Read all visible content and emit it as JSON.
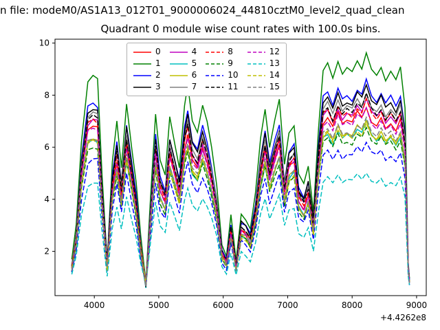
{
  "figure": {
    "title_line1": "n file: modeM0/AS1A13_012T01_9000006024_44810cztM0_level2_quad_clean",
    "title_line2": "Quadrant 0 module wise count rates with 100.0s bins.",
    "background": "#ffffff"
  },
  "chart_data": {
    "type": "line",
    "title": "Quadrant 0 module wise count rates with 100.0s bins.",
    "xlabel": "",
    "ylabel": "",
    "grid": false,
    "legend_position": "upper center",
    "legend_ncol": 4,
    "x_offset": "+4.4262e8",
    "xlim": [
      3390,
      9150
    ],
    "ylim": [
      0.3,
      10.15
    ],
    "x_ticks": [
      4000,
      5000,
      6000,
      7000,
      8000,
      9000
    ],
    "y_ticks": [
      2,
      4,
      6,
      8,
      10
    ],
    "x": [
      3650,
      3720,
      3800,
      3900,
      3980,
      4050,
      4120,
      4200,
      4280,
      4350,
      4420,
      4500,
      4580,
      4650,
      4720,
      4800,
      4870,
      4950,
      5020,
      5100,
      5170,
      5250,
      5320,
      5400,
      5450,
      5520,
      5600,
      5680,
      5750,
      5820,
      5900,
      5980,
      6050,
      6120,
      6200,
      6280,
      6350,
      6420,
      6500,
      6580,
      6650,
      6720,
      6800,
      6870,
      6950,
      7020,
      7100,
      7170,
      7250,
      7320,
      7400,
      7480,
      7550,
      7620,
      7700,
      7780,
      7850,
      7920,
      8000,
      8080,
      8150,
      8220,
      8300,
      8380,
      8450,
      8520,
      8600,
      8680,
      8750,
      8820,
      8870,
      8890
    ],
    "base_curve": [
      1.6,
      3.0,
      6.2,
      8.5,
      8.7,
      8.6,
      5.0,
      1.7,
      5.5,
      7.0,
      5.2,
      7.7,
      6.0,
      4.6,
      2.5,
      0.75,
      4.0,
      7.3,
      5.5,
      4.9,
      7.2,
      6.2,
      5.3,
      7.6,
      8.35,
      7.0,
      6.6,
      7.6,
      6.9,
      5.9,
      4.5,
      2.3,
      1.85,
      3.4,
      1.65,
      3.5,
      3.3,
      2.9,
      4.2,
      6.3,
      7.45,
      6.0,
      7.0,
      7.75,
      5.3,
      6.6,
      6.9,
      5.0,
      4.6,
      5.3,
      3.6,
      6.8,
      8.9,
      9.15,
      8.6,
      9.3,
      8.8,
      9.0,
      8.85,
      9.35,
      9.1,
      9.7,
      9.0,
      8.75,
      9.1,
      8.6,
      8.9,
      8.5,
      9.0,
      7.5,
      1.6,
      0.95
    ],
    "pivot": 0.5,
    "series": [
      {
        "name": "0",
        "color": "#ff0000",
        "dash": false,
        "scale": 0.77
      },
      {
        "name": "1",
        "color": "#008000",
        "dash": false,
        "scale": 1.0
      },
      {
        "name": "2",
        "color": "#0000ff",
        "dash": false,
        "scale": 0.88
      },
      {
        "name": "3",
        "color": "#000000",
        "dash": false,
        "scale": 0.86
      },
      {
        "name": "4",
        "color": "#bf00bf",
        "dash": false,
        "scale": 0.8
      },
      {
        "name": "5",
        "color": "#00bfbf",
        "dash": false,
        "scale": 0.7
      },
      {
        "name": "6",
        "color": "#bfbf00",
        "dash": false,
        "scale": 0.71
      },
      {
        "name": "7",
        "color": "#808080",
        "dash": false,
        "scale": 0.83
      },
      {
        "name": "8",
        "color": "#ff0000",
        "dash": true,
        "scale": 0.8
      },
      {
        "name": "9",
        "color": "#008000",
        "dash": true,
        "scale": 0.68
      },
      {
        "name": "10",
        "color": "#0000ff",
        "dash": true,
        "scale": 0.62
      },
      {
        "name": "11",
        "color": "#000000",
        "dash": true,
        "scale": 0.815
      },
      {
        "name": "12",
        "color": "#bf00bf",
        "dash": true,
        "scale": 0.76
      },
      {
        "name": "13",
        "color": "#00bfbf",
        "dash": true,
        "scale": 0.5
      },
      {
        "name": "14",
        "color": "#bfbf00",
        "dash": true,
        "scale": 0.7
      },
      {
        "name": "15",
        "color": "#808080",
        "dash": true,
        "scale": 0.72
      }
    ]
  }
}
